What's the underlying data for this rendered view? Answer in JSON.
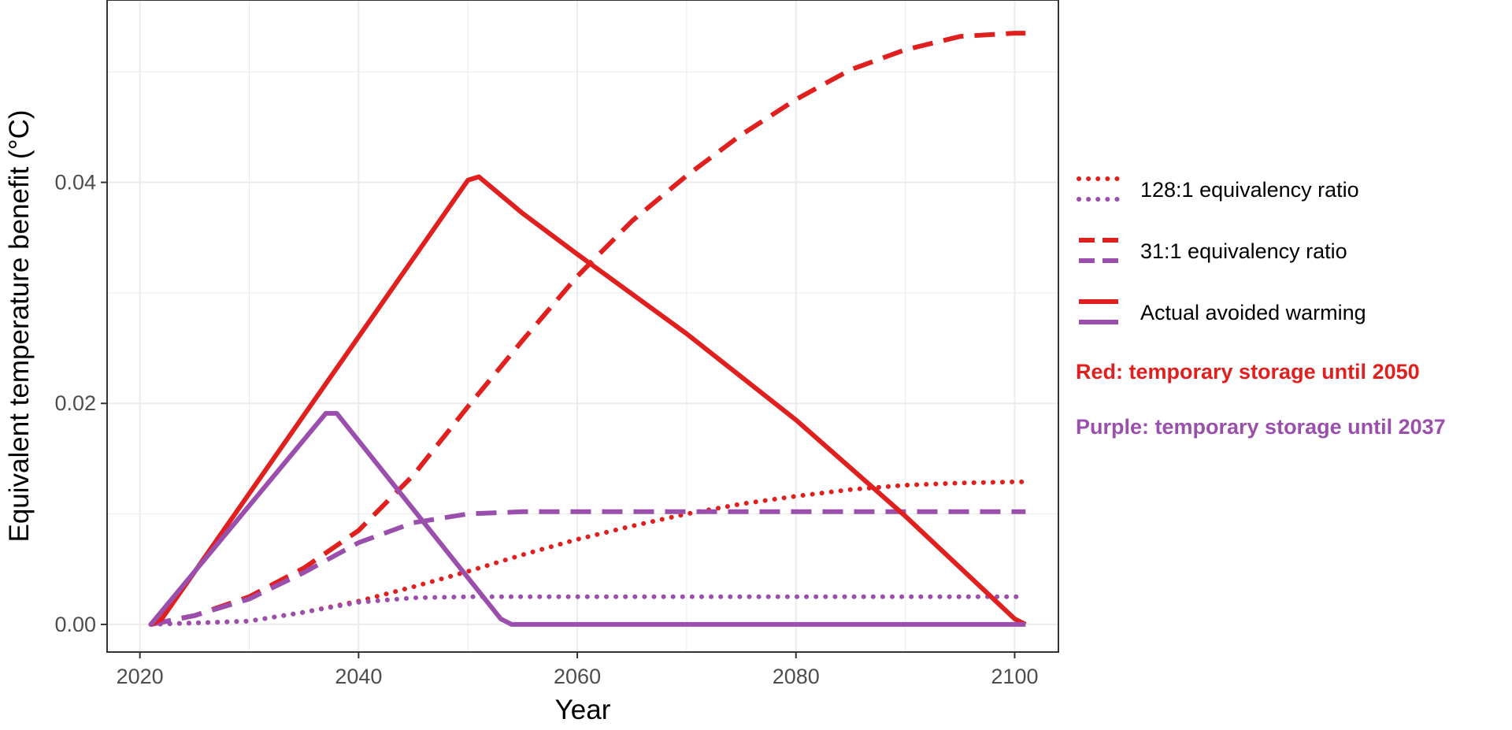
{
  "chart_data": {
    "type": "line",
    "xlabel": "Year",
    "ylabel": "Equivalent temperature benefit (°C)",
    "xlim": [
      2017,
      2104
    ],
    "ylim": [
      -0.0025,
      0.0565
    ],
    "x_ticks": [
      2020,
      2040,
      2060,
      2080,
      2100
    ],
    "x_tick_labels": [
      "2020",
      "2040",
      "2060",
      "2080",
      "2100"
    ],
    "y_ticks": [
      0.0,
      0.02,
      0.04
    ],
    "y_tick_labels": [
      "0.00",
      "0.02",
      "0.04"
    ],
    "grid": true,
    "legend_position": "right",
    "colors": {
      "red": "#e0201e",
      "purple": "#9b4fad",
      "grid": "#ebebeb",
      "axis_text": "#4d4d4d"
    },
    "legend": [
      {
        "label": "128:1 equivalency ratio",
        "linetype": "dotted"
      },
      {
        "label": "31:1 equivalency ratio",
        "linetype": "dashed"
      },
      {
        "label": "Actual avoided warming",
        "linetype": "solid"
      }
    ],
    "notes": [
      {
        "text": "Red: temporary storage until 2050",
        "color": "#e0201e"
      },
      {
        "text": "Purple: temporary storage until 2037",
        "color": "#9b4fad"
      }
    ],
    "series": [
      {
        "color": "red",
        "linetype": "solid",
        "x": [
          2021,
          2022,
          2050,
          2051,
          2055,
          2060,
          2070,
          2080,
          2090,
          2100,
          2101
        ],
        "y": [
          0.0,
          0.0005,
          0.0402,
          0.0405,
          0.0372,
          0.0335,
          0.0263,
          0.0185,
          0.0098,
          0.0005,
          0.0
        ]
      },
      {
        "color": "purple",
        "linetype": "solid",
        "x": [
          2021,
          2037,
          2038,
          2053,
          2054,
          2101
        ],
        "y": [
          0.0,
          0.0191,
          0.0191,
          0.0005,
          0.0,
          0.0
        ]
      },
      {
        "color": "red",
        "linetype": "dashed",
        "x": [
          2021,
          2025,
          2030,
          2035,
          2040,
          2045,
          2050,
          2055,
          2060,
          2065,
          2070,
          2075,
          2080,
          2085,
          2090,
          2095,
          2100,
          2101
        ],
        "y": [
          0.0,
          0.0008,
          0.0025,
          0.0051,
          0.0085,
          0.0135,
          0.0197,
          0.0257,
          0.0315,
          0.0365,
          0.0406,
          0.0443,
          0.0475,
          0.0502,
          0.052,
          0.0532,
          0.0535,
          0.0535
        ]
      },
      {
        "color": "purple",
        "linetype": "dashed",
        "x": [
          2021,
          2025,
          2030,
          2035,
          2040,
          2045,
          2050,
          2055,
          2060,
          2070,
          2080,
          2090,
          2100,
          2101
        ],
        "y": [
          0.0,
          0.0008,
          0.0023,
          0.0047,
          0.0074,
          0.0092,
          0.01,
          0.0102,
          0.0102,
          0.0102,
          0.0102,
          0.0102,
          0.0102,
          0.0102
        ]
      },
      {
        "color": "red",
        "linetype": "dotted",
        "x": [
          2021,
          2030,
          2035,
          2040,
          2045,
          2050,
          2055,
          2060,
          2065,
          2070,
          2075,
          2080,
          2085,
          2090,
          2095,
          2100,
          2101
        ],
        "y": [
          0.0,
          0.0003,
          0.0011,
          0.0021,
          0.0034,
          0.0048,
          0.0063,
          0.0077,
          0.0089,
          0.01,
          0.0109,
          0.0116,
          0.0122,
          0.0126,
          0.0128,
          0.0129,
          0.0129
        ]
      },
      {
        "color": "purple",
        "linetype": "dotted",
        "x": [
          2021,
          2030,
          2035,
          2040,
          2045,
          2050,
          2055,
          2060,
          2080,
          2100,
          2101
        ],
        "y": [
          0.0,
          0.0003,
          0.0011,
          0.002,
          0.0024,
          0.0025,
          0.0025,
          0.0025,
          0.0025,
          0.0025,
          0.0025
        ]
      }
    ]
  }
}
